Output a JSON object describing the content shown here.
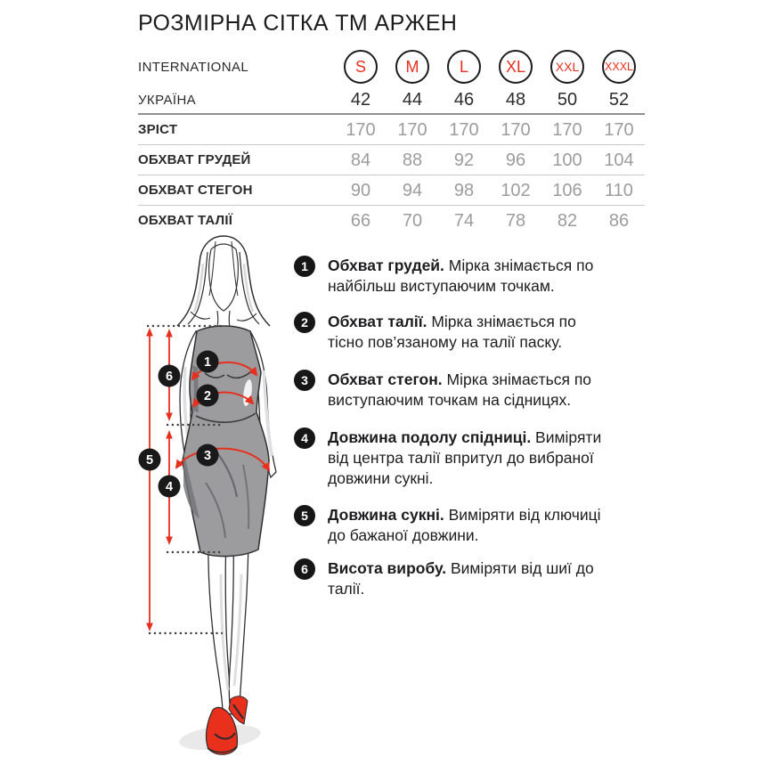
{
  "title": "РОЗМІРНА СІТКА ТМ АРЖЕН",
  "colors": {
    "accent_red": "#e6301f",
    "badge_black": "#161616",
    "table_value_gray": "#9c9c9c",
    "dress_gray": "#9c9c9e",
    "rule_dark": "#8f8f8f",
    "rule_light": "#c9c9c9"
  },
  "table": {
    "header_rows": [
      {
        "label": "INTERNATIONAL",
        "type": "circles",
        "values": [
          "S",
          "M",
          "L",
          "XL",
          "XXL",
          "XXXL"
        ]
      },
      {
        "label": "УКРАЇНА",
        "type": "plain",
        "values": [
          "42",
          "44",
          "46",
          "48",
          "50",
          "52"
        ]
      }
    ],
    "rows": [
      {
        "label": "ЗРІСТ",
        "values": [
          "170",
          "170",
          "170",
          "170",
          "170",
          "170"
        ]
      },
      {
        "label": "ОБХВАТ ГРУДЕЙ",
        "values": [
          "84",
          "88",
          "92",
          "96",
          "100",
          "104"
        ]
      },
      {
        "label": "ОБХВАТ СТЕГОН",
        "values": [
          "90",
          "94",
          "98",
          "102",
          "106",
          "110"
        ]
      },
      {
        "label": "ОБХВАТ ТАЛІЇ",
        "values": [
          "66",
          "70",
          "74",
          "78",
          "82",
          "86"
        ]
      }
    ]
  },
  "measurements": [
    {
      "num": "1",
      "term": "Обхват грудей.",
      "desc": "Мірка знімається по найбільш виступаючим точкам."
    },
    {
      "num": "2",
      "term": "Обхват талії.",
      "desc": "Мірка знімається по тісно пов’язаному на талії паску."
    },
    {
      "num": "3",
      "term": "Обхват стегон.",
      "desc": "Мірка знімається по виступаючим точкам на сідницях."
    },
    {
      "num": "4",
      "term": "Довжина подолу спідниці.",
      "desc": "Виміряти від центра талії впритул до вибраної довжини сукні."
    },
    {
      "num": "5",
      "term": "Довжина сукні.",
      "desc": "Виміряти від ключиці до бажаної довжини."
    },
    {
      "num": "6",
      "term": "Висота виробу.",
      "desc": "Виміряти від шиї до талії."
    }
  ],
  "figure": {
    "markers": [
      "1",
      "2",
      "3",
      "4",
      "5",
      "6"
    ]
  }
}
